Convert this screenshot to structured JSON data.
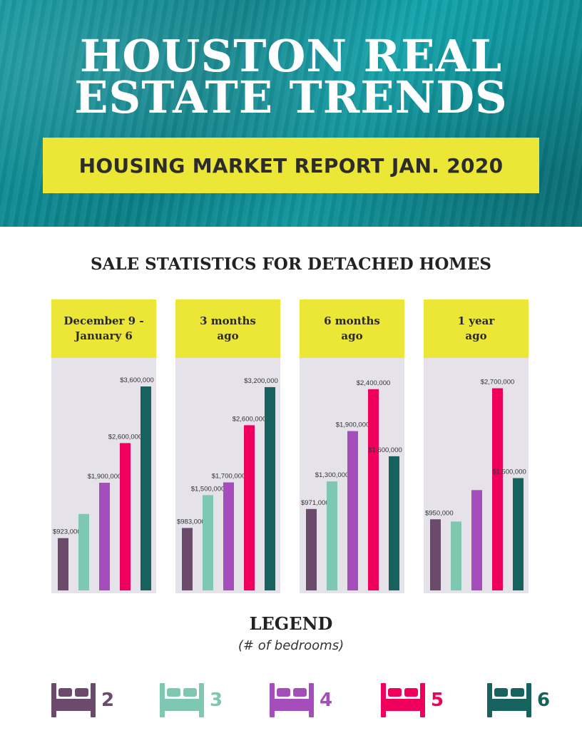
{
  "header": {
    "title": "HOUSTON REAL\nESTATE TRENDS",
    "subtitle": "HOUSING MARKET REPORT JAN. 2020"
  },
  "section_heading": "SALE STATISTICS FOR DETACHED HOMES",
  "legend": {
    "title": "LEGEND",
    "subtitle": "(# of bedrooms)",
    "items": [
      {
        "label": "2",
        "color": "#6b4a6b",
        "icon": "bed-icon"
      },
      {
        "label": "3",
        "color": "#7ec7b0",
        "icon": "bed-icon"
      },
      {
        "label": "4",
        "color": "#a54dbb",
        "icon": "bed-icon"
      },
      {
        "label": "5",
        "color": "#f0005d",
        "icon": "bed-icon"
      },
      {
        "label": "6",
        "color": "#17625f",
        "icon": "bed-icon"
      }
    ]
  },
  "colors": {
    "header_teal": "#0e8e97",
    "banner_yellow": "#ece636",
    "panel_bg": "#e5e3e9"
  },
  "chart_data": [
    {
      "type": "bar",
      "title": "December 9 -\nJanuary 6",
      "categories": [
        "2",
        "3",
        "4",
        "5",
        "6"
      ],
      "values": [
        923000,
        1350000,
        1900000,
        2600000,
        3600000
      ],
      "labels": [
        "$923,000",
        null,
        "$1,900,000",
        "$2,600,000",
        "$3,600,000"
      ],
      "ylim": [
        0,
        3700000
      ]
    },
    {
      "type": "bar",
      "title": "3 months\nago",
      "categories": [
        "2",
        "3",
        "4",
        "5",
        "6"
      ],
      "values": [
        983000,
        1500000,
        1700000,
        2600000,
        3200000
      ],
      "labels": [
        "$983,000",
        "$1,500,000",
        "$1,700,000",
        "$2,600,000",
        "$3,200,000"
      ],
      "ylim": [
        0,
        3300000
      ]
    },
    {
      "type": "bar",
      "title": "6 months\nago",
      "categories": [
        "2",
        "3",
        "4",
        "5",
        "6"
      ],
      "values": [
        971000,
        1300000,
        1900000,
        2400000,
        1600000
      ],
      "labels": [
        "$971,000",
        "$1,300,000",
        "$1,900,000",
        "$2,400,000",
        "$1,600,000"
      ],
      "ylim": [
        0,
        2500000
      ]
    },
    {
      "type": "bar",
      "title": "1 year\nago",
      "categories": [
        "2",
        "3",
        "4",
        "5",
        "6"
      ],
      "values": [
        950000,
        920000,
        1340000,
        2700000,
        1500000
      ],
      "labels": [
        "$950,000",
        null,
        null,
        "$2,700,000",
        "$1,500,000"
      ],
      "ylim": [
        0,
        2800000
      ]
    }
  ]
}
